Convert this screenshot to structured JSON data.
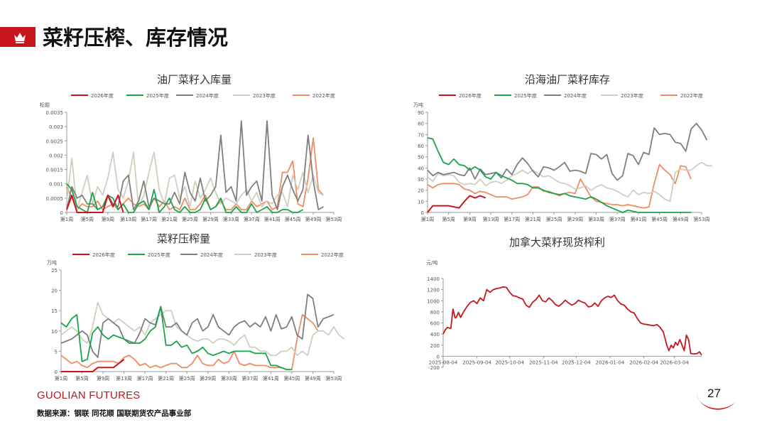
{
  "header": {
    "title": "菜籽压榨、库存情况"
  },
  "footer": {
    "brand": "GUOLIAN FUTURES",
    "source": "数据来源：钢联  同花顺  国联期货农产品事业部",
    "page_number": "27"
  },
  "legend_labels_a": [
    "2026年度",
    "2025年度",
    "2024年度",
    "2023年度",
    "2022年度"
  ],
  "chart_data": [
    {
      "type": "line",
      "title": "油厂菜籽入库量",
      "ylabel": "标题",
      "ylim": [
        0,
        0.0035
      ],
      "yticks": [
        "0",
        "0.0005",
        "0.001",
        "0.0015",
        "0.002",
        "0.0025",
        "0.003",
        "0.0035"
      ],
      "xticks": [
        "第1周",
        "第5周",
        "第9周",
        "第13周",
        "第17周",
        "第21周",
        "第25周",
        "第29周",
        "第33周",
        "第37周",
        "第41周",
        "第45周",
        "第49周",
        "第53周"
      ],
      "legend_position": "top",
      "series": [
        {
          "name": "2026年度",
          "color": "#d0121b",
          "values": [
            0.0001,
            0.0006,
            0,
            0,
            0,
            0,
            0,
            0,
            0.0006,
            0.0002,
            0.0006,
            0
          ]
        },
        {
          "name": "2025年度",
          "color": "#1aa34a",
          "values": [
            0.001,
            0.0008,
            0.0002,
            0.0001,
            0,
            0.0007,
            0.0001,
            0.0002,
            0.0006,
            0.0005,
            0.0001,
            0.0003,
            0,
            0,
            0.0003,
            0.0004,
            0.0001,
            0.0008,
            0,
            0.0002,
            0.0005,
            0.0001,
            0,
            0.0002,
            0,
            0,
            0.0001,
            0.0005,
            0.0001,
            0.0002,
            0.0005,
            0,
            0,
            0.0002,
            0,
            0,
            0.0003,
            0,
            0.0001,
            0.0002,
            0,
            0,
            0.0001,
            0.0001,
            0,
            0,
            0.0001
          ]
        },
        {
          "name": "2024年度",
          "color": "#7f7f7f",
          "values": [
            0.0001,
            0.0009,
            0.0005,
            0.0006,
            0.0003,
            0.0003,
            0.0001,
            0.0002,
            0.0006,
            0.0003,
            0.0002,
            0.0011,
            0.0013,
            0.0001,
            0.0004,
            0.0011,
            0.0002,
            0.0005,
            0.0004,
            0.0003,
            0.0003,
            0.0007,
            0.0003,
            0.0014,
            0.0007,
            0.0004,
            0.0012,
            0.0004,
            0.0006,
            0.0009,
            0.0027,
            0.0007,
            0.0009,
            0.0004,
            0.0032,
            0.0006,
            0.0009,
            0.0011,
            0.0004,
            0.0032,
            0.0006,
            0.0001,
            0.0009,
            0.0013,
            0.0008,
            0.0004,
            0.0008,
            0.0027,
            0.0011,
            0.0001,
            0.0002
          ]
        },
        {
          "name": "2023年度",
          "color": "#cfcfbf",
          "values": [
            0.0004,
            0.0019,
            0.0001,
            0.0007,
            0.0013,
            0.0003,
            0.0009,
            0.0006,
            0.0012,
            0.0021,
            0.0008,
            0.0005,
            0.0011,
            0.0021,
            0.0002,
            0.0006,
            0.0014,
            0.0021,
            0.0008,
            0.0003,
            0.0012,
            0.0013,
            0.0005,
            0.0009,
            0.0002,
            0.0011,
            0.0005,
            0.0008,
            0.0012,
            0.0007,
            0.0003,
            0.0005,
            0.0004,
            0.0003,
            0.0006,
            0.0008,
            0.0004,
            0.0007,
            0.0002,
            0.0004,
            0.0003,
            0.0006,
            0.0007,
            0.0002,
            0.0013,
            0.0008,
            0.0014,
            0.0007,
            0.0013,
            0.0007,
            0.0006
          ]
        },
        {
          "name": "2022年度",
          "color": "#ee8c65",
          "values": [
            0.0009,
            0.0005,
            0.0001,
            0.0003,
            0.0002,
            0.0002,
            0.0004,
            0.0001,
            0.0002,
            0.0003,
            0.0001,
            0.0003,
            0.0005,
            0.0003,
            0.0002,
            0.0003,
            0.0001,
            0.0005,
            0.0002,
            0.0004,
            0.0001,
            0.0002,
            0.0001,
            0.0005,
            0.0001,
            0.0001,
            0.0003,
            0.0006,
            0.0001,
            0.0002,
            0.0004,
            0.0001,
            0.0001,
            0.0003,
            0.0001,
            0.0001,
            0.0004,
            0.0002,
            0.0003,
            0.0004,
            0.0001,
            0.0002,
            0.0014,
            0.0014,
            0.0018,
            0.0003,
            0.0002,
            0.0012,
            0.0026,
            0.0008,
            0.0006
          ]
        }
      ]
    },
    {
      "type": "line",
      "title": "沿海油厂菜籽库存",
      "ylabel": "万吨",
      "ylim": [
        0,
        90
      ],
      "yticks": [
        "0",
        "10",
        "20",
        "30",
        "40",
        "50",
        "60",
        "70",
        "80",
        "90"
      ],
      "xticks": [
        "第1周",
        "第5周",
        "第9周",
        "第13周",
        "第17周",
        "第21周",
        "第25周",
        "第29周",
        "第33周",
        "第37周",
        "第41周",
        "第45周",
        "第49周",
        "第53周"
      ],
      "legend_position": "top",
      "series": [
        {
          "name": "2026年度",
          "color": "#d0121b",
          "values": [
            0,
            6,
            6,
            6,
            6,
            5,
            4,
            10,
            15,
            13,
            15,
            13
          ]
        },
        {
          "name": "2025年度",
          "color": "#1aa34a",
          "values": [
            67,
            66,
            55,
            45,
            43,
            48,
            43,
            42,
            38,
            41,
            38,
            32,
            30,
            36,
            33,
            31,
            29,
            26,
            26,
            25,
            22,
            22,
            20,
            18,
            17,
            16,
            17,
            15,
            14,
            13,
            12,
            14,
            12,
            9,
            6,
            4,
            2,
            0,
            2,
            1,
            0,
            0,
            0,
            0,
            0,
            0,
            0,
            0,
            0,
            0,
            0
          ]
        },
        {
          "name": "2024年度",
          "color": "#7f7f7f",
          "values": [
            38,
            33,
            36,
            34,
            35,
            36,
            34,
            33,
            40,
            30,
            39,
            34,
            35,
            36,
            31,
            39,
            34,
            43,
            49,
            44,
            37,
            32,
            41,
            40,
            38,
            41,
            45,
            37,
            38,
            37,
            35,
            53,
            52,
            48,
            52,
            35,
            29,
            33,
            53,
            51,
            43,
            54,
            52,
            76,
            70,
            71,
            70,
            63,
            62,
            55,
            75,
            80,
            74,
            65
          ]
        },
        {
          "name": "2023年度",
          "color": "#cfcfbf",
          "values": [
            32,
            28,
            35,
            33,
            34,
            33,
            27,
            25,
            26,
            25,
            30,
            24,
            27,
            28,
            26,
            29,
            33,
            35,
            38,
            35,
            38,
            35,
            32,
            33,
            30,
            27,
            26,
            24,
            21,
            22,
            24,
            20,
            23,
            25,
            22,
            21,
            19,
            16,
            14,
            20,
            16,
            18,
            17,
            19,
            16,
            12,
            10,
            36,
            39,
            38,
            38,
            42,
            45,
            42,
            42
          ]
        },
        {
          "name": "2022年度",
          "color": "#ee8c65",
          "values": [
            25,
            22,
            25,
            26,
            26,
            26,
            25,
            21,
            20,
            17,
            19,
            18,
            16,
            14,
            14,
            14,
            12,
            13,
            14,
            16,
            23,
            23,
            19,
            19,
            17,
            15,
            17,
            18,
            17,
            30,
            22,
            14,
            10,
            9,
            8,
            7,
            7,
            6,
            7,
            6,
            5,
            4,
            5,
            26,
            43,
            38,
            34,
            26,
            42,
            41,
            30
          ]
        }
      ]
    },
    {
      "type": "line",
      "title": "菜籽压榨量",
      "ylabel": "万吨",
      "ylim": [
        0,
        25
      ],
      "yticks": [
        "0",
        "5",
        "10",
        "15",
        "20",
        "25"
      ],
      "xticks": [
        "第1周",
        "第5周",
        "第9周",
        "第13周",
        "第17周",
        "第21周",
        "第25周",
        "第29周",
        "第33周",
        "第37周",
        "第41周",
        "第45周",
        "第49周",
        "第53周"
      ],
      "legend_position": "top",
      "series": [
        {
          "name": "2026年度",
          "color": "#d0121b",
          "values": [
            0,
            0,
            0,
            0,
            0,
            0,
            0,
            1,
            1,
            1,
            1,
            2,
            3
          ]
        },
        {
          "name": "2025年度",
          "color": "#1aa34a",
          "values": [
            12,
            11,
            13,
            14,
            2.5,
            3,
            9.5,
            11,
            9,
            8,
            9,
            8.5,
            8,
            7,
            7,
            7,
            8,
            10,
            11,
            16,
            6.5,
            6.5,
            7.5,
            6,
            6.5,
            4.5,
            5,
            6,
            4.5,
            4,
            4.5,
            5,
            4.5,
            5,
            5,
            5,
            5,
            4.5,
            4.5,
            4.5,
            1.5,
            1.5,
            1,
            0.5,
            0.5
          ]
        },
        {
          "name": "2024年度",
          "color": "#7f7f7f",
          "values": [
            7,
            7.5,
            8,
            9,
            10,
            9,
            5,
            3.5,
            12,
            13,
            12,
            11,
            8,
            7.5,
            7,
            9.5,
            13,
            12,
            11.5,
            16,
            11,
            11,
            12,
            10,
            9,
            12,
            13,
            10,
            11,
            14,
            11,
            10,
            9,
            11,
            12,
            12.5,
            11,
            12,
            11,
            13.5,
            10,
            14,
            10.5,
            11,
            13.5,
            9,
            8,
            19,
            18,
            11,
            13,
            13.5,
            14
          ]
        },
        {
          "name": "2023年度",
          "color": "#cfcfbf",
          "values": [
            9,
            10,
            11,
            10,
            8,
            7,
            11,
            17,
            14,
            13,
            12,
            13,
            12,
            11,
            10,
            11,
            9,
            12,
            13,
            14,
            15,
            15,
            11,
            10,
            9,
            8,
            7.5,
            8,
            8,
            7,
            8,
            8,
            7.5,
            6.5,
            8,
            9,
            6,
            6,
            5,
            5,
            4,
            4,
            5,
            5,
            6,
            4,
            5,
            4,
            9,
            10,
            10,
            9,
            11,
            9,
            8
          ]
        },
        {
          "name": "2022年度",
          "color": "#ee8c65",
          "values": [
            4,
            3,
            2,
            2.5,
            1.5,
            1,
            2,
            2.5,
            2.5,
            2.5,
            2.5,
            2,
            3.5,
            4,
            3,
            1.5,
            2,
            1,
            1.5,
            1,
            1.5,
            2,
            2,
            1,
            1,
            2,
            4,
            2,
            1.5,
            1.5,
            3,
            2,
            2.5,
            5,
            2,
            1.5,
            2,
            1.5,
            1.5,
            1.5,
            1,
            1,
            1,
            0.5,
            0.5,
            8,
            14,
            13,
            12,
            10
          ]
        }
      ]
    },
    {
      "type": "line",
      "title": "加拿大菜籽现货榨利",
      "ylabel": "元/吨",
      "ylim": [
        -200,
        1400
      ],
      "yticks": [
        "-200",
        "0",
        "200",
        "400",
        "600",
        "800",
        "1000",
        "1200",
        "1400"
      ],
      "xticks": [
        "2025-08-04",
        "2025-09-04",
        "2025-10-04",
        "2025-11-04",
        "2025-12-04",
        "2026-01-04",
        "2026-02-04",
        "2026-03-04"
      ],
      "x_start": "2025-08-04",
      "x_end": "2026-03-29",
      "series": [
        {
          "name": "",
          "color": "#c8161d",
          "x": [
            "2025-08-04",
            "2025-08-06",
            "2025-08-08",
            "2025-08-11",
            "2025-08-13",
            "2025-08-15",
            "2025-08-16",
            "2025-08-18",
            "2025-08-20",
            "2025-08-23",
            "2025-08-26",
            "2025-08-29",
            "2025-09-01",
            "2025-09-04",
            "2025-09-07",
            "2025-09-10",
            "2025-09-13",
            "2025-09-16",
            "2025-09-19",
            "2025-09-22",
            "2025-09-25",
            "2025-09-28",
            "2025-10-01",
            "2025-10-04",
            "2025-10-07",
            "2025-10-10",
            "2025-10-13",
            "2025-10-16",
            "2025-10-19",
            "2025-10-22",
            "2025-10-25",
            "2025-10-28",
            "2025-10-31",
            "2025-11-03",
            "2025-11-06",
            "2025-11-09",
            "2025-11-12",
            "2025-11-15",
            "2025-11-18",
            "2025-11-21",
            "2025-11-24",
            "2025-11-27",
            "2025-11-30",
            "2025-12-03",
            "2025-12-06",
            "2025-12-09",
            "2025-12-12",
            "2025-12-15",
            "2025-12-18",
            "2025-12-21",
            "2025-12-24",
            "2025-12-27",
            "2025-12-30",
            "2026-01-02",
            "2026-01-05",
            "2026-01-08",
            "2026-01-11",
            "2026-01-14",
            "2026-01-17",
            "2026-01-20",
            "2026-01-23",
            "2026-01-26",
            "2026-01-29",
            "2026-02-01",
            "2026-02-04",
            "2026-02-07",
            "2026-02-10",
            "2026-02-13",
            "2026-02-16",
            "2026-02-19",
            "2026-02-22",
            "2026-02-25",
            "2026-02-27",
            "2026-03-01",
            "2026-03-03",
            "2026-03-05",
            "2026-03-07",
            "2026-03-09",
            "2026-03-11",
            "2026-03-13",
            "2026-03-15",
            "2026-03-17",
            "2026-03-19",
            "2026-03-22",
            "2026-03-25",
            "2026-03-27",
            "2026-03-29"
          ],
          "values": [
            400,
            480,
            520,
            500,
            850,
            690,
            700,
            790,
            700,
            810,
            900,
            970,
            1000,
            950,
            1050,
            1000,
            1200,
            1150,
            1200,
            1220,
            1230,
            1250,
            1240,
            1150,
            1090,
            1080,
            1050,
            1030,
            920,
            880,
            970,
            1020,
            1100,
            1000,
            980,
            1050,
            1000,
            930,
            900,
            950,
            1010,
            960,
            920,
            950,
            1010,
            980,
            960,
            890,
            900,
            960,
            900,
            1000,
            1050,
            1080,
            1060,
            1100,
            1000,
            940,
            920,
            850,
            800,
            780,
            680,
            600,
            580,
            570,
            560,
            550,
            570,
            520,
            430,
            200,
            100,
            200,
            150,
            250,
            200,
            300,
            200,
            100,
            380,
            300,
            50,
            40,
            50,
            80,
            20
          ]
        }
      ]
    }
  ]
}
